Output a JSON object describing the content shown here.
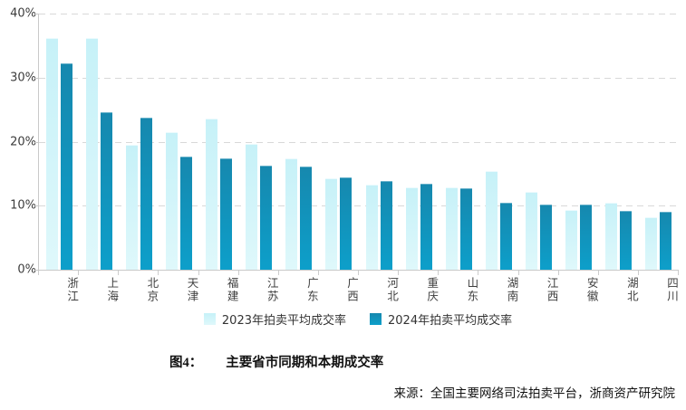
{
  "chart_data": {
    "type": "bar",
    "title": "主要省市同期和本期成交率",
    "categories": [
      "浙江",
      "上海",
      "北京",
      "天津",
      "福建",
      "江苏",
      "广东",
      "广西",
      "河北",
      "重庆",
      "山东",
      "湖南",
      "江西",
      "安徽",
      "湖北",
      "四川"
    ],
    "series": [
      {
        "name": "2023年拍卖平均成交率",
        "color_top": "#c6f1f8",
        "color_bottom": "#dff8fb",
        "values": [
          36.2,
          36.2,
          19.5,
          21.5,
          23.6,
          19.6,
          17.4,
          14.3,
          13.3,
          12.9,
          12.9,
          15.4,
          12.1,
          9.3,
          10.5,
          8.2
        ]
      },
      {
        "name": "2024年拍卖平均成交率",
        "color_top": "#1688ae",
        "color_bottom": "#0d9fca",
        "values": [
          32.2,
          24.6,
          23.7,
          17.7,
          17.4,
          16.2,
          16.1,
          14.4,
          13.8,
          13.4,
          12.7,
          10.5,
          10.2,
          10.2,
          9.2,
          9.0
        ]
      }
    ],
    "xlabel": "",
    "ylabel": "",
    "y_ticks": [
      "40%",
      "30%",
      "20%",
      "10%",
      "0%"
    ],
    "ylim": [
      0,
      40
    ],
    "grid": "horizontal-dashed",
    "legend_position": "bottom"
  },
  "caption": {
    "prefix": "图4：",
    "title": "主要省市同期和本期成交率"
  },
  "source": "来源：全国主要网络司法拍卖平台，浙商资产研究院",
  "colors": {
    "series_2023": "#c9f2f9",
    "series_2024": "#1193bd",
    "gridline": "#d8d8d8",
    "axis": "#c9c9c9",
    "axis_text": "#3c3c3c"
  }
}
